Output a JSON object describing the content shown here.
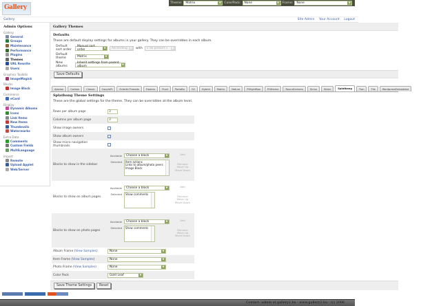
{
  "topbar": {
    "theme_label": "Theme:",
    "theme_value": "Matrix",
    "colorpack_label": "ColorPack:",
    "colorpack_value": "None",
    "frame_label": "Frame:",
    "frame_value": "None"
  },
  "logo": {
    "text": "Gallery"
  },
  "breadcrumb": {
    "root": "Gallery",
    "links": [
      "Site Admin",
      "Your Account",
      "Logout"
    ]
  },
  "sidebar": {
    "title": "Admin Options",
    "groups": [
      {
        "label": "Gallery",
        "items": [
          {
            "label": "General",
            "color": "#7a8aa0"
          },
          {
            "label": "Groups",
            "color": "#2a7a3a"
          },
          {
            "label": "Maintenance",
            "color": "#8a6a3a"
          },
          {
            "label": "Performance",
            "color": "#3a6a2a"
          },
          {
            "label": "Plugins",
            "color": "#999999"
          },
          {
            "label": "Themes",
            "color": "#666666",
            "current": true
          },
          {
            "label": "URL Rewrite",
            "color": "#2a4a9a"
          },
          {
            "label": "Users",
            "color": "#aaaaaa"
          }
        ]
      },
      {
        "label": "Graphics Toolkits",
        "items": [
          {
            "label": "ImageMagick",
            "color": "#9a3a6a"
          }
        ]
      },
      {
        "label": "Blocks",
        "items": [
          {
            "label": "Image Block",
            "color": "#c03030"
          }
        ]
      },
      {
        "label": "Commerce",
        "items": [
          {
            "label": "eCard",
            "color": "#3a6ac0"
          }
        ]
      },
      {
        "label": "Display",
        "items": [
          {
            "label": "Dynamic Albums",
            "color": "#c04a9a"
          },
          {
            "label": "Icons",
            "color": "#3a8a3a"
          },
          {
            "label": "Link Items",
            "color": "#888888"
          },
          {
            "label": "New Items",
            "color": "#c03a3a"
          },
          {
            "label": "Thumbnails",
            "color": "#3a5a9a"
          },
          {
            "label": "Watermarks",
            "color": "#c04a4a"
          }
        ]
      },
      {
        "label": "Extra Data",
        "items": [
          {
            "label": "Comments",
            "color": "#2a9a2a"
          },
          {
            "label": "Custom Fields",
            "color": "#777777"
          },
          {
            "label": "MultiLanguage",
            "color": "#6a9a6a"
          }
        ]
      },
      {
        "label": "Import",
        "items": [
          {
            "label": "Remote",
            "color": "#888888"
          },
          {
            "label": "Upload Applet",
            "color": "#3a5a9a"
          },
          {
            "label": "Web/Server",
            "color": "#aaaaaa"
          }
        ]
      }
    ]
  },
  "main": {
    "title": "Gallery Themes",
    "defaults": {
      "heading": "Defaults",
      "desc": "These are default display settings for albums in your gallery. They can be overridden in each album.",
      "sort_label": "Default sort order",
      "sort_value": "Manual sort order",
      "sort_dir": "Ascending",
      "with_label": "with",
      "presort": "« no presort »",
      "theme_label": "Default theme",
      "theme_value": "Matrix",
      "new_albums_label": "New albums",
      "new_albums_value": "Inherit settings from parent album",
      "save_label": "Save Defaults"
    },
    "tabs": [
      "Ajaxian",
      "Carbon",
      "Classic",
      "CopyleFt",
      "EclecticThreads",
      "Floatrix",
      "Fluid",
      "PortaBo",
      "G2",
      "Hybrid",
      "Matrix",
      "Nature",
      "PGlightBox",
      "PGtheme",
      "RoundCorners",
      "Siriux",
      "Slider",
      "Splatbang",
      "Tion",
      "Tile",
      "WordpressEmbedded"
    ],
    "active_tab": "Splatbang",
    "settings": {
      "heading": "Splatbang Theme Settings",
      "desc": "These are the global settings for the theme. They can be overridden at the album level.",
      "rows_label": "Rows per album page",
      "rows_value": "3",
      "cols_label": "Columns per album page",
      "cols_value": "3",
      "image_owners_label": "Show image owners",
      "image_owners": false,
      "album_owners_label": "Show album owners",
      "album_owners": true,
      "micro_label": "Show micro navigation thumbnails",
      "micro": false,
      "available_label": "Available",
      "selected_label": "Selected",
      "choose": "Choose a block",
      "add": "Add",
      "remove": "Remove",
      "move_up": "Move Up",
      "move_down": "Move Down",
      "sidebar_blocks_label": "Blocks to show in the sidebar",
      "sidebar_blocks": [
        "Item actions",
        "Links to album/photo peers",
        "Image Block"
      ],
      "album_blocks_label": "Blocks to show on album pages",
      "album_blocks": [
        "Show comments"
      ],
      "photo_blocks_label": "Blocks to show on photo pages",
      "photo_blocks": [
        "Show comments"
      ],
      "view_samples": "View Samples",
      "album_frame_label": "Album Frame",
      "album_frame": "None",
      "item_frame_label": "Item Frame",
      "item_frame": "None",
      "photo_frame_label": "Photo Frame",
      "photo_frame": "None",
      "color_pack_label": "Color Pack",
      "color_pack": "Gold Leaf",
      "save_label": "Save Theme Settings",
      "reset_label": "Reset"
    }
  },
  "footer": {
    "text": "Contact: admin at gallery2.hu - www.gallery2.hu - (c) 2006"
  }
}
